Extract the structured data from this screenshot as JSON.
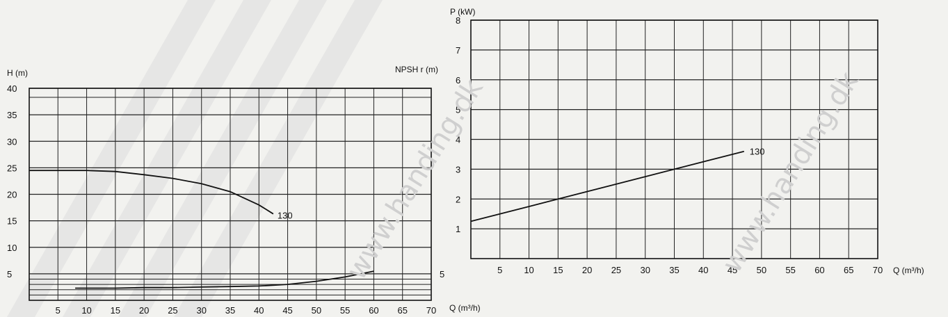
{
  "watermark": "www.handing.dk",
  "colors": {
    "background": "#f2f2ef",
    "ink": "#111111",
    "watermark": "#cfcfcf"
  },
  "chart_data": [
    {
      "type": "line",
      "title": "",
      "ylabel": "H (m)",
      "ylabel_right": "NPSH r (m)",
      "xlabel": "Q (m³/h)",
      "xlim": [
        0,
        70
      ],
      "ylim": [
        0,
        40
      ],
      "x_ticks": [
        5,
        10,
        15,
        20,
        25,
        30,
        35,
        40,
        45,
        50,
        55,
        60,
        65,
        70
      ],
      "y_ticks": [
        5,
        10,
        15,
        20,
        25,
        30,
        35,
        40
      ],
      "y_right_ticks": [
        5
      ],
      "grid": true,
      "series": [
        {
          "name": "130",
          "x": [
            0,
            5,
            10,
            15,
            20,
            25,
            30,
            35,
            40,
            42.5
          ],
          "y": [
            24.5,
            24.5,
            24.5,
            24.3,
            23.7,
            23.0,
            22.0,
            20.5,
            18.0,
            16.3
          ]
        },
        {
          "name": "",
          "x": [
            8,
            15,
            20,
            25,
            30,
            35,
            40,
            45,
            50,
            55,
            60
          ],
          "y": [
            2.3,
            2.3,
            2.4,
            2.4,
            2.5,
            2.6,
            2.7,
            3.0,
            3.6,
            4.4,
            5.5
          ]
        }
      ]
    },
    {
      "type": "line",
      "title": "",
      "ylabel": "P (kW)",
      "xlabel": "Q (m³/h)",
      "xlim": [
        0,
        70
      ],
      "ylim": [
        0,
        8
      ],
      "x_ticks": [
        5,
        10,
        15,
        20,
        25,
        30,
        35,
        40,
        45,
        50,
        55,
        60,
        65,
        70
      ],
      "y_ticks": [
        1,
        2,
        3,
        4,
        5,
        6,
        7,
        8
      ],
      "grid": true,
      "series": [
        {
          "name": "130",
          "x": [
            0,
            15,
            35,
            47
          ],
          "y": [
            1.25,
            2.0,
            3.0,
            3.6
          ]
        }
      ]
    }
  ]
}
